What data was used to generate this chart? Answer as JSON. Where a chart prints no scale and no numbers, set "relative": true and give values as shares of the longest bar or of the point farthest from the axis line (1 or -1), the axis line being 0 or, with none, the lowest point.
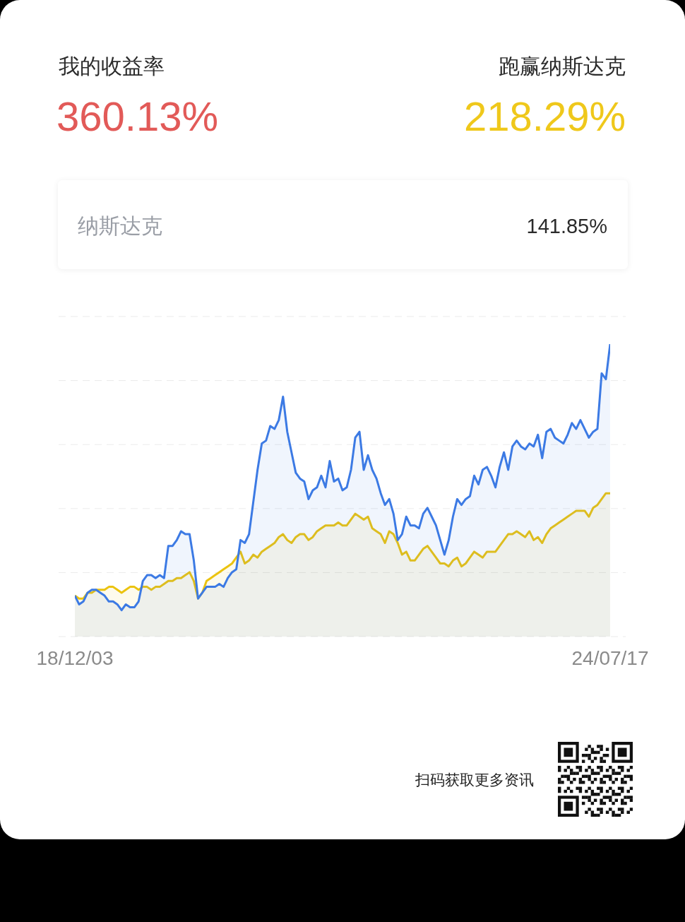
{
  "chart_data": [
    {
      "type": "other",
      "annotations": [
        "我的收益率",
        "360.13%",
        "跑赢纳斯达克",
        "218.29%",
        "纳斯达克",
        "141.85%"
      ]
    },
    {
      "type": "area",
      "relative": true,
      "grid": "y",
      "categories": [
        "18/12/03",
        null,
        null,
        null,
        null,
        null,
        null,
        null,
        null,
        null,
        null,
        null,
        null,
        null,
        null,
        null,
        null,
        null,
        null,
        null,
        null,
        null,
        null,
        null,
        null,
        null,
        null,
        null,
        null,
        null,
        null,
        null,
        null,
        null,
        null,
        null,
        null,
        null,
        null,
        null,
        null,
        null,
        null,
        null,
        null,
        null,
        null,
        null,
        null,
        null,
        null,
        null,
        null,
        null,
        null,
        null,
        null,
        null,
        null,
        null,
        null,
        null,
        null,
        null,
        null,
        null,
        null,
        null,
        null,
        null,
        null,
        null,
        null,
        null,
        null,
        null,
        null,
        null,
        null,
        null,
        null,
        null,
        null,
        null,
        null,
        null,
        null,
        null,
        null,
        null,
        null,
        null,
        null,
        null,
        null,
        null,
        null,
        null,
        null,
        null,
        null,
        null,
        null,
        null,
        null,
        null,
        null,
        null,
        null,
        null,
        null,
        null,
        null,
        null,
        null,
        null,
        null,
        null,
        null,
        null,
        null,
        null,
        null,
        null,
        null,
        null,
        "24/07/17"
      ],
      "series": [
        {
          "color": "#ebc30f",
          "values": [
            0.14,
            0.13,
            0.13,
            0.15,
            0.15,
            0.16,
            0.16,
            0.16,
            0.17,
            0.17,
            0.16,
            0.15,
            0.16,
            0.17,
            0.17,
            0.16,
            0.17,
            0.17,
            0.16,
            0.17,
            0.17,
            0.18,
            0.19,
            0.19,
            0.2,
            0.2,
            0.21,
            0.22,
            0.19,
            0.13,
            0.15,
            0.19,
            0.2,
            0.21,
            0.22,
            0.23,
            0.24,
            0.25,
            0.27,
            0.29,
            0.25,
            0.26,
            0.28,
            0.27,
            0.29,
            0.3,
            0.31,
            0.32,
            0.34,
            0.35,
            0.33,
            0.32,
            0.34,
            0.35,
            0.35,
            0.33,
            0.34,
            0.36,
            0.37,
            0.38,
            0.38,
            0.38,
            0.39,
            0.38,
            0.38,
            0.4,
            0.42,
            0.41,
            0.4,
            0.41,
            0.37,
            0.36,
            0.35,
            0.32,
            0.36,
            0.35,
            0.32,
            0.28,
            0.29,
            0.26,
            0.26,
            0.28,
            0.3,
            0.31,
            0.29,
            0.27,
            0.25,
            0.25,
            0.24,
            0.26,
            0.27,
            0.24,
            0.25,
            0.27,
            0.29,
            0.28,
            0.27,
            0.29,
            0.29,
            0.29,
            0.31,
            0.33,
            0.35,
            0.35,
            0.36,
            0.35,
            0.34,
            0.36,
            0.33,
            0.34,
            0.32,
            0.35,
            0.37,
            0.38,
            0.39,
            0.4,
            0.41,
            0.42,
            0.43,
            0.43,
            0.43,
            0.41,
            0.44,
            0.45,
            0.47,
            0.49,
            0.49
          ]
        },
        {
          "color": "#3c7ae4",
          "values": [
            0.14,
            0.11,
            0.12,
            0.15,
            0.16,
            0.16,
            0.15,
            0.14,
            0.12,
            0.12,
            0.11,
            0.09,
            0.11,
            0.1,
            0.1,
            0.12,
            0.19,
            0.21,
            0.21,
            0.2,
            0.21,
            0.2,
            0.31,
            0.31,
            0.33,
            0.36,
            0.35,
            0.35,
            0.26,
            0.13,
            0.15,
            0.17,
            0.17,
            0.17,
            0.18,
            0.17,
            0.2,
            0.22,
            0.23,
            0.33,
            0.32,
            0.35,
            0.46,
            0.57,
            0.66,
            0.67,
            0.72,
            0.71,
            0.74,
            0.82,
            0.7,
            0.63,
            0.56,
            0.54,
            0.53,
            0.47,
            0.5,
            0.51,
            0.55,
            0.51,
            0.6,
            0.53,
            0.54,
            0.5,
            0.51,
            0.57,
            0.68,
            0.7,
            0.57,
            0.62,
            0.57,
            0.54,
            0.49,
            0.45,
            0.47,
            0.42,
            0.33,
            0.35,
            0.41,
            0.38,
            0.38,
            0.37,
            0.42,
            0.44,
            0.41,
            0.38,
            0.33,
            0.28,
            0.33,
            0.41,
            0.47,
            0.45,
            0.47,
            0.48,
            0.55,
            0.52,
            0.57,
            0.58,
            0.55,
            0.51,
            0.58,
            0.63,
            0.57,
            0.65,
            0.67,
            0.65,
            0.64,
            0.66,
            0.65,
            0.69,
            0.61,
            0.7,
            0.71,
            0.68,
            0.67,
            0.66,
            0.69,
            0.73,
            0.71,
            0.74,
            0.71,
            0.68,
            0.7,
            0.71,
            0.9,
            0.88,
            1.0
          ]
        }
      ],
      "annotations": [
        "扫码获取更多资讯"
      ]
    }
  ]
}
